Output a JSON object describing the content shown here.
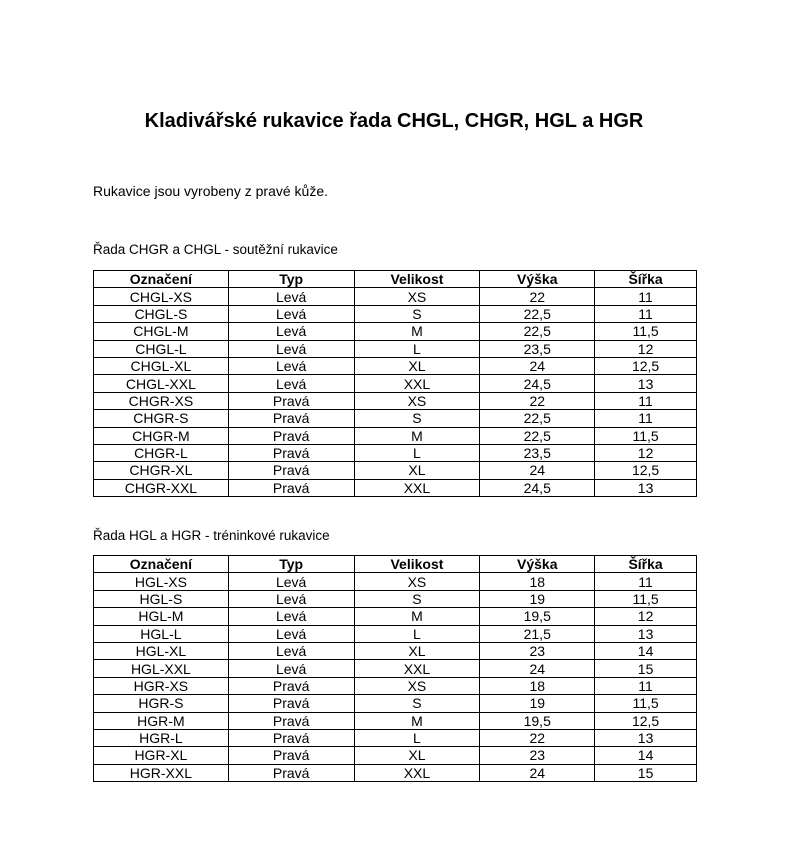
{
  "title": "Kladivářské rukavice řada CHGL, CHGR, HGL a HGR",
  "intro": "Rukavice jsou vyrobeny z pravé kůže.",
  "tables": [
    {
      "caption": "Řada CHGR a CHGL - soutěžní rukavice",
      "headers": [
        "Označení",
        "Typ",
        "Velikost",
        "Výška",
        "Šířka"
      ],
      "rows": [
        [
          "CHGL-XS",
          "Levá",
          "XS",
          "22",
          "11"
        ],
        [
          "CHGL-S",
          "Levá",
          "S",
          "22,5",
          "11"
        ],
        [
          "CHGL-M",
          "Levá",
          "M",
          "22,5",
          "11,5"
        ],
        [
          "CHGL-L",
          "Levá",
          "L",
          "23,5",
          "12"
        ],
        [
          "CHGL-XL",
          "Levá",
          "XL",
          "24",
          "12,5"
        ],
        [
          "CHGL-XXL",
          "Levá",
          "XXL",
          "24,5",
          "13"
        ],
        [
          "CHGR-XS",
          "Pravá",
          "XS",
          "22",
          "11"
        ],
        [
          "CHGR-S",
          "Pravá",
          "S",
          "22,5",
          "11"
        ],
        [
          "CHGR-M",
          "Pravá",
          "M",
          "22,5",
          "11,5"
        ],
        [
          "CHGR-L",
          "Pravá",
          "L",
          "23,5",
          "12"
        ],
        [
          "CHGR-XL",
          "Pravá",
          "XL",
          "24",
          "12,5"
        ],
        [
          "CHGR-XXL",
          "Pravá",
          "XXL",
          "24,5",
          "13"
        ]
      ]
    },
    {
      "caption": "Řada HGL a HGR - tréninkové rukavice",
      "headers": [
        "Označení",
        "Typ",
        "Velikost",
        "Výška",
        "Šířka"
      ],
      "rows": [
        [
          "HGL-XS",
          "Levá",
          "XS",
          "18",
          "11"
        ],
        [
          "HGL-S",
          "Levá",
          "S",
          "19",
          "11,5"
        ],
        [
          "HGL-M",
          "Levá",
          "M",
          "19,5",
          "12"
        ],
        [
          "HGL-L",
          "Levá",
          "L",
          "21,5",
          "13"
        ],
        [
          "HGL-XL",
          "Levá",
          "XL",
          "23",
          "14"
        ],
        [
          "HGL-XXL",
          "Levá",
          "XXL",
          "24",
          "15"
        ],
        [
          "HGR-XS",
          "Pravá",
          "XS",
          "18",
          "11"
        ],
        [
          "HGR-S",
          "Pravá",
          "S",
          "19",
          "11,5"
        ],
        [
          "HGR-M",
          "Pravá",
          "M",
          "19,5",
          "12,5"
        ],
        [
          "HGR-L",
          "Pravá",
          "L",
          "22",
          "13"
        ],
        [
          "HGR-XL",
          "Pravá",
          "XL",
          "23",
          "14"
        ],
        [
          "HGR-XXL",
          "Pravá",
          "XXL",
          "24",
          "15"
        ]
      ]
    }
  ]
}
